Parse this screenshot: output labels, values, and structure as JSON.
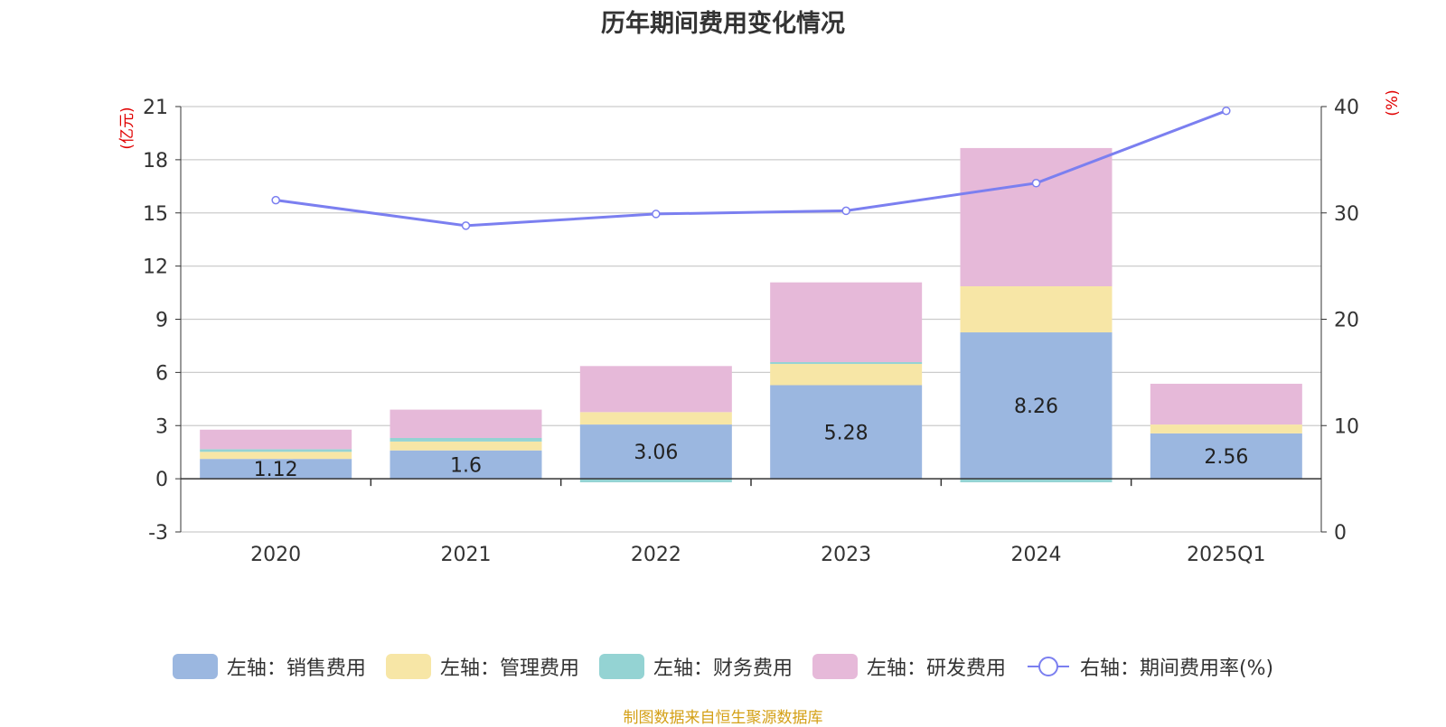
{
  "chart_data": {
    "type": "bar",
    "title": "历年期间费用变化情况",
    "categories": [
      "2020",
      "2021",
      "2022",
      "2023",
      "2024",
      "2025Q1"
    ],
    "left_axis": {
      "label": "(亿元)",
      "min": -3,
      "max": 21,
      "ticks": [
        "-3",
        "0",
        "3",
        "6",
        "9",
        "12",
        "15",
        "18",
        "21"
      ]
    },
    "right_axis": {
      "label": "(%)",
      "min": 0,
      "max": 40,
      "ticks": [
        "0",
        "10",
        "20",
        "30",
        "40"
      ]
    },
    "series": [
      {
        "name": "左轴：销售费用",
        "kind": "stacked-bar",
        "color": "#9bb7e0",
        "values": [
          1.12,
          1.6,
          3.06,
          5.28,
          8.26,
          2.56
        ],
        "labels": [
          "1.12",
          "1.6",
          "3.06",
          "5.28",
          "8.26",
          "2.56"
        ]
      },
      {
        "name": "左轴：管理费用",
        "kind": "stacked-bar",
        "color": "#f7e6a6",
        "values": [
          0.4,
          0.5,
          0.7,
          1.2,
          2.6,
          0.5
        ]
      },
      {
        "name": "左轴：财务费用",
        "kind": "stacked-bar",
        "color": "#94d3d3",
        "values": [
          0.15,
          0.2,
          -0.2,
          0.1,
          -0.2,
          0.0
        ]
      },
      {
        "name": "左轴：研发费用",
        "kind": "stacked-bar",
        "color": "#e6b9d9",
        "values": [
          1.1,
          1.6,
          2.6,
          4.5,
          7.8,
          2.3
        ]
      },
      {
        "name": "右轴：期间费用率(%)",
        "kind": "line",
        "color": "#7b7ff0",
        "values": [
          31.2,
          28.8,
          29.9,
          30.2,
          32.8,
          39.6
        ]
      }
    ]
  },
  "source": "制图数据来自恒生聚源数据库"
}
